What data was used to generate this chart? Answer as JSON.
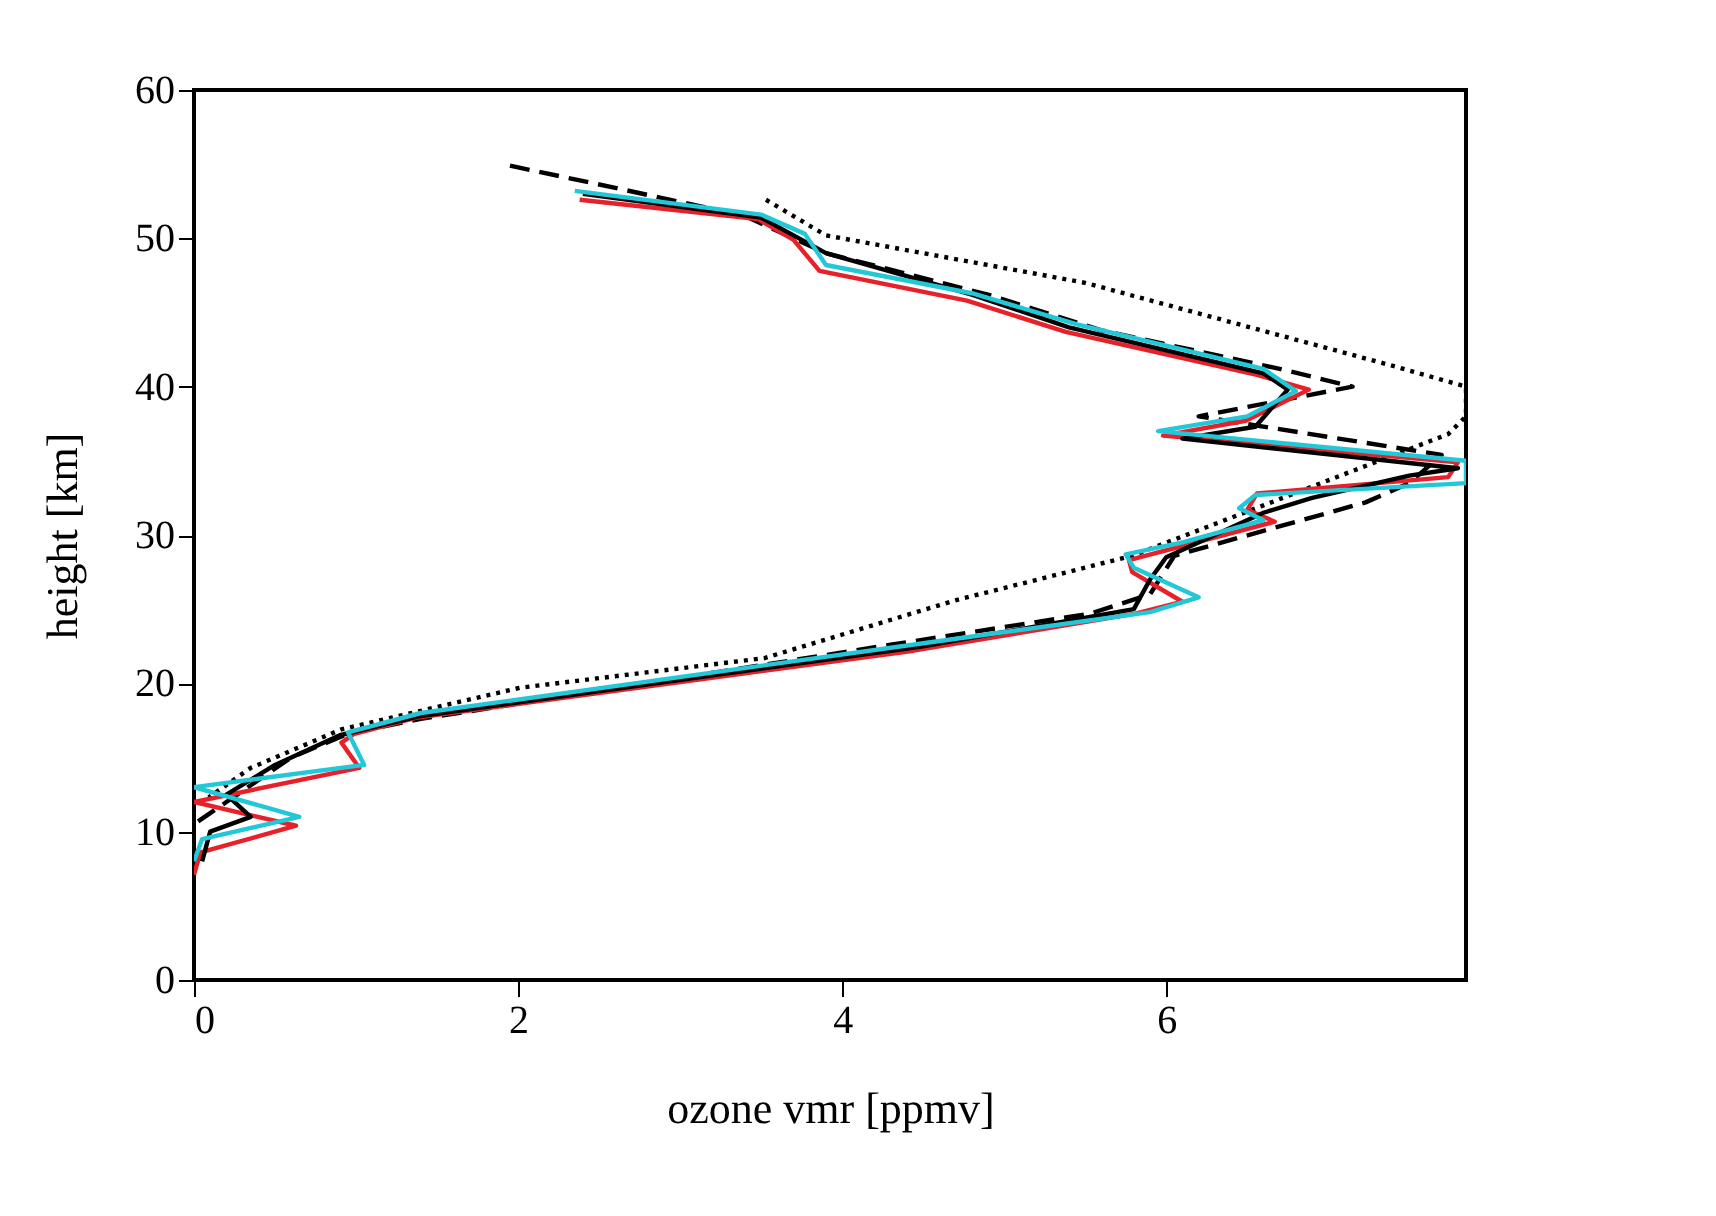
{
  "chart_data": {
    "type": "line",
    "xlabel": "ozone vmr [ppmv]",
    "ylabel": "height [km]",
    "xlim": [
      0,
      7.85
    ],
    "xticks": [
      0,
      2,
      4,
      6
    ],
    "ylim": [
      0,
      60
    ],
    "yticks": [
      0,
      10,
      20,
      30,
      40,
      50,
      60
    ],
    "grid": false,
    "marker": "none",
    "series": [
      {
        "color": "#000000",
        "line_style": "dotted",
        "x": [
          3.53,
          3.9,
          5.5,
          7.4,
          7.85,
          7.85,
          7.74,
          6.6,
          5.79,
          4.7,
          3.52,
          2.01,
          0.91,
          0.35,
          0.09
        ],
        "values": [
          52.6,
          50.2,
          47,
          41.4,
          40,
          38,
          36.8,
          32,
          28.6,
          25.6,
          21.7,
          19.7,
          16.9,
          14.3,
          12.3
        ]
      },
      {
        "color": "#000000",
        "line_style": "dashed",
        "x": [
          1.95,
          2.6,
          3.4,
          3.9,
          4.9,
          5.6,
          6.7,
          7.15,
          6.2,
          7.7,
          7.5,
          7.23,
          6.05,
          5.9,
          5.53,
          4.3,
          1.4,
          0.95,
          0.6,
          0.2,
          0
        ],
        "values": [
          54.9,
          53.4,
          51.5,
          49,
          46.2,
          43.8,
          41.2,
          40,
          38,
          35.4,
          33.5,
          32.2,
          28.6,
          26,
          24.7,
          22.6,
          17.6,
          16.6,
          15,
          12,
          10.5
        ]
      },
      {
        "color": "#e8202a",
        "line_style": "solid",
        "x": [
          2.38,
          3.48,
          3.7,
          3.86,
          4.77,
          5.38,
          6.56,
          6.88,
          6.49,
          5.98,
          7.8,
          7.74,
          6.56,
          6.5,
          6.67,
          5.77,
          5.79,
          6.1,
          5.81,
          4.44,
          1.38,
          0.99,
          0.91,
          1.02,
          0,
          0.63,
          0.04,
          0
        ],
        "values": [
          52.6,
          51.3,
          49.9,
          47.8,
          45.8,
          43.7,
          40.8,
          39.8,
          37.7,
          36.7,
          34.9,
          33.9,
          32.8,
          31.7,
          30.9,
          28.3,
          27.5,
          25.5,
          24.7,
          22.2,
          17.7,
          16.6,
          16,
          14.3,
          12,
          10.4,
          8.6,
          7.1
        ]
      },
      {
        "color": "#000000",
        "line_style": "solid",
        "x": [
          2.4,
          3.5,
          3.9,
          4.8,
          5.4,
          6.6,
          6.75,
          6.55,
          6.1,
          7.8,
          7.5,
          6.9,
          6.6,
          6.0,
          5.9,
          5.8,
          4.5,
          1.4,
          0.9,
          0.5,
          0.2,
          0.35,
          0.1,
          0.05
        ],
        "values": [
          53,
          51.4,
          49,
          46.2,
          44,
          40.9,
          39.8,
          37.3,
          36.5,
          34.5,
          34,
          32.5,
          31.5,
          28.5,
          27,
          25,
          22.5,
          17.8,
          16.5,
          14.5,
          12.5,
          11,
          10,
          8
        ]
      },
      {
        "color": "#22c8d8",
        "line_style": "solid",
        "x": [
          2.35,
          3.5,
          3.77,
          3.9,
          4.8,
          5.45,
          6.6,
          6.8,
          6.5,
          5.95,
          7.85,
          7.85,
          6.55,
          6.45,
          6.6,
          6.1,
          5.75,
          5.8,
          6.2,
          5.9,
          4.5,
          1.4,
          0.95,
          1.05,
          0,
          0.65,
          0.05,
          0
        ],
        "values": [
          53.2,
          51.6,
          50.3,
          48.2,
          46.3,
          44.2,
          41.2,
          39.7,
          38,
          37,
          35,
          33.5,
          32.7,
          31.8,
          31,
          29.5,
          28.7,
          27.8,
          25.8,
          24.8,
          22.7,
          18,
          16.7,
          14.5,
          13,
          11,
          9.5,
          8
        ]
      }
    ]
  }
}
